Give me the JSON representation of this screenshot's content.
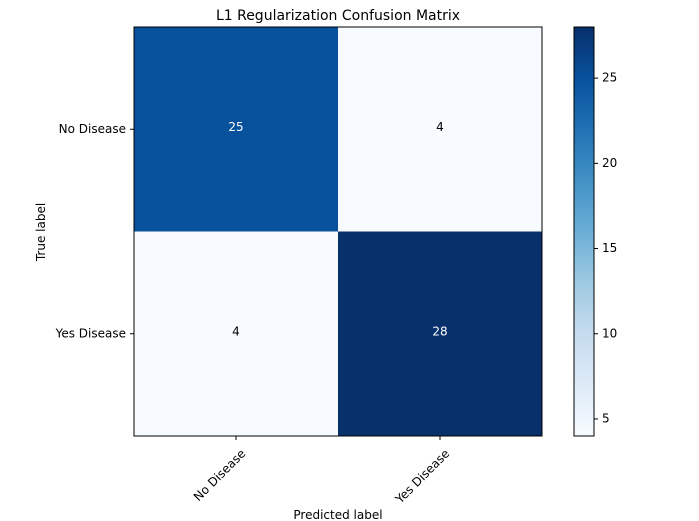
{
  "chart_data": {
    "type": "heatmap",
    "title": "L1 Regularization Confusion Matrix",
    "xlabel": "Predicted label",
    "ylabel": "True label",
    "x_categories": [
      "No Disease",
      "Yes Disease"
    ],
    "y_categories": [
      "No Disease",
      "Yes Disease"
    ],
    "values": [
      [
        25,
        4
      ],
      [
        4,
        28
      ]
    ],
    "colormap": "Blues",
    "colorbar": {
      "min": 4,
      "max": 28,
      "ticks": [
        5,
        10,
        15,
        20,
        25
      ]
    },
    "grid": false,
    "x_tick_rotation_deg": 45
  }
}
